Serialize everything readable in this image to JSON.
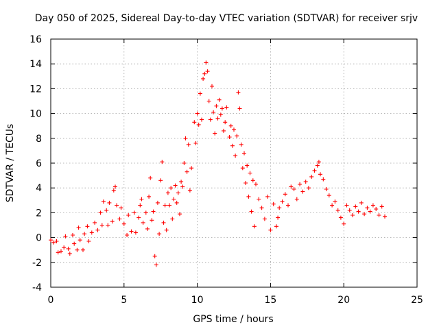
{
  "chart_data": {
    "type": "scatter",
    "title": "Day 050 of 2025, Sidereal Day-to-day VTEC variation (SDTVAR) for receiver srjv",
    "xlabel": "GPS time / hours",
    "ylabel": "SDTVAR / TECUs",
    "xlim": [
      0,
      25
    ],
    "ylim": [
      -4,
      16
    ],
    "xticks": [
      0,
      5,
      10,
      15,
      20,
      25
    ],
    "yticks": [
      -4,
      -2,
      0,
      2,
      4,
      6,
      8,
      10,
      12,
      14,
      16
    ],
    "grid": true,
    "marker": "+",
    "series": [
      {
        "name": "SDTVAR",
        "color": "#ff0000",
        "points": [
          [
            0.0,
            -0.2
          ],
          [
            0.2,
            -0.4
          ],
          [
            0.4,
            -0.3
          ],
          [
            0.5,
            -1.2
          ],
          [
            0.7,
            -1.1
          ],
          [
            0.9,
            -0.8
          ],
          [
            1.0,
            0.1
          ],
          [
            1.2,
            -0.9
          ],
          [
            1.3,
            -1.3
          ],
          [
            1.5,
            0.2
          ],
          [
            1.6,
            -0.5
          ],
          [
            1.8,
            -1.0
          ],
          [
            1.9,
            0.8
          ],
          [
            2.0,
            -0.2
          ],
          [
            2.2,
            -1.0
          ],
          [
            2.3,
            0.3
          ],
          [
            2.5,
            0.9
          ],
          [
            2.6,
            -0.3
          ],
          [
            2.8,
            0.4
          ],
          [
            3.0,
            1.2
          ],
          [
            3.2,
            0.6
          ],
          [
            3.4,
            2.0
          ],
          [
            3.5,
            1.0
          ],
          [
            3.6,
            2.9
          ],
          [
            3.8,
            2.2
          ],
          [
            3.9,
            1.0
          ],
          [
            4.0,
            2.8
          ],
          [
            4.2,
            1.3
          ],
          [
            4.3,
            3.8
          ],
          [
            4.4,
            4.1
          ],
          [
            4.5,
            2.6
          ],
          [
            4.7,
            1.5
          ],
          [
            4.8,
            2.4
          ],
          [
            5.0,
            1.1
          ],
          [
            5.2,
            0.2
          ],
          [
            5.3,
            1.8
          ],
          [
            5.5,
            0.5
          ],
          [
            5.7,
            2.0
          ],
          [
            5.8,
            0.4
          ],
          [
            6.0,
            1.6
          ],
          [
            6.1,
            2.6
          ],
          [
            6.2,
            3.1
          ],
          [
            6.3,
            1.2
          ],
          [
            6.5,
            2.0
          ],
          [
            6.6,
            0.7
          ],
          [
            6.7,
            3.3
          ],
          [
            6.8,
            4.8
          ],
          [
            6.9,
            1.4
          ],
          [
            7.0,
            2.1
          ],
          [
            7.1,
            -1.5
          ],
          [
            7.2,
            -2.2
          ],
          [
            7.3,
            2.8
          ],
          [
            7.4,
            0.3
          ],
          [
            7.5,
            4.6
          ],
          [
            7.6,
            6.1
          ],
          [
            7.7,
            1.2
          ],
          [
            7.8,
            2.6
          ],
          [
            7.9,
            0.6
          ],
          [
            8.0,
            3.6
          ],
          [
            8.1,
            2.6
          ],
          [
            8.2,
            4.0
          ],
          [
            8.3,
            1.5
          ],
          [
            8.4,
            3.1
          ],
          [
            8.5,
            4.2
          ],
          [
            8.6,
            2.8
          ],
          [
            8.7,
            3.6
          ],
          [
            8.8,
            1.9
          ],
          [
            8.9,
            4.5
          ],
          [
            9.0,
            4.1
          ],
          [
            9.1,
            6.0
          ],
          [
            9.2,
            8.0
          ],
          [
            9.3,
            5.3
          ],
          [
            9.4,
            7.5
          ],
          [
            9.5,
            3.8
          ],
          [
            9.6,
            5.6
          ],
          [
            9.8,
            9.3
          ],
          [
            9.9,
            7.6
          ],
          [
            10.0,
            10.0
          ],
          [
            10.1,
            9.1
          ],
          [
            10.2,
            11.6
          ],
          [
            10.3,
            9.5
          ],
          [
            10.4,
            12.8
          ],
          [
            10.5,
            13.2
          ],
          [
            10.6,
            14.1
          ],
          [
            10.7,
            13.4
          ],
          [
            10.8,
            11.0
          ],
          [
            10.9,
            9.5
          ],
          [
            11.0,
            12.2
          ],
          [
            11.1,
            10.1
          ],
          [
            11.2,
            8.4
          ],
          [
            11.3,
            10.6
          ],
          [
            11.4,
            9.6
          ],
          [
            11.5,
            11.1
          ],
          [
            11.6,
            9.9
          ],
          [
            11.7,
            10.4
          ],
          [
            11.8,
            8.6
          ],
          [
            11.9,
            9.3
          ],
          [
            12.0,
            10.5
          ],
          [
            12.2,
            8.1
          ],
          [
            12.3,
            9.0
          ],
          [
            12.4,
            7.4
          ],
          [
            12.5,
            8.7
          ],
          [
            12.6,
            6.6
          ],
          [
            12.7,
            8.2
          ],
          [
            12.8,
            11.7
          ],
          [
            12.9,
            10.4
          ],
          [
            13.0,
            7.5
          ],
          [
            13.1,
            5.6
          ],
          [
            13.2,
            6.8
          ],
          [
            13.3,
            4.4
          ],
          [
            13.4,
            5.8
          ],
          [
            13.5,
            3.3
          ],
          [
            13.6,
            5.2
          ],
          [
            13.7,
            2.1
          ],
          [
            13.8,
            4.6
          ],
          [
            13.9,
            0.9
          ],
          [
            14.0,
            4.3
          ],
          [
            14.2,
            3.1
          ],
          [
            14.4,
            2.4
          ],
          [
            14.6,
            1.5
          ],
          [
            14.8,
            3.3
          ],
          [
            15.0,
            0.6
          ],
          [
            15.2,
            2.7
          ],
          [
            15.4,
            0.9
          ],
          [
            15.5,
            1.6
          ],
          [
            15.6,
            2.4
          ],
          [
            15.8,
            2.9
          ],
          [
            16.0,
            3.5
          ],
          [
            16.2,
            2.6
          ],
          [
            16.4,
            4.1
          ],
          [
            16.6,
            3.9
          ],
          [
            16.8,
            3.1
          ],
          [
            17.0,
            4.3
          ],
          [
            17.2,
            3.7
          ],
          [
            17.4,
            4.5
          ],
          [
            17.6,
            4.0
          ],
          [
            17.8,
            4.9
          ],
          [
            18.0,
            5.4
          ],
          [
            18.2,
            5.8
          ],
          [
            18.3,
            6.1
          ],
          [
            18.4,
            5.1
          ],
          [
            18.6,
            4.7
          ],
          [
            18.8,
            3.9
          ],
          [
            19.0,
            3.4
          ],
          [
            19.2,
            2.6
          ],
          [
            19.4,
            2.9
          ],
          [
            19.6,
            2.2
          ],
          [
            19.8,
            1.6
          ],
          [
            20.0,
            1.1
          ],
          [
            20.2,
            2.6
          ],
          [
            20.4,
            2.2
          ],
          [
            20.6,
            1.8
          ],
          [
            20.8,
            2.5
          ],
          [
            21.0,
            2.1
          ],
          [
            21.2,
            2.8
          ],
          [
            21.4,
            1.9
          ],
          [
            21.6,
            2.4
          ],
          [
            21.8,
            2.1
          ],
          [
            22.0,
            2.6
          ],
          [
            22.2,
            2.3
          ],
          [
            22.4,
            1.8
          ],
          [
            22.6,
            2.5
          ],
          [
            22.8,
            1.7
          ]
        ]
      }
    ]
  }
}
